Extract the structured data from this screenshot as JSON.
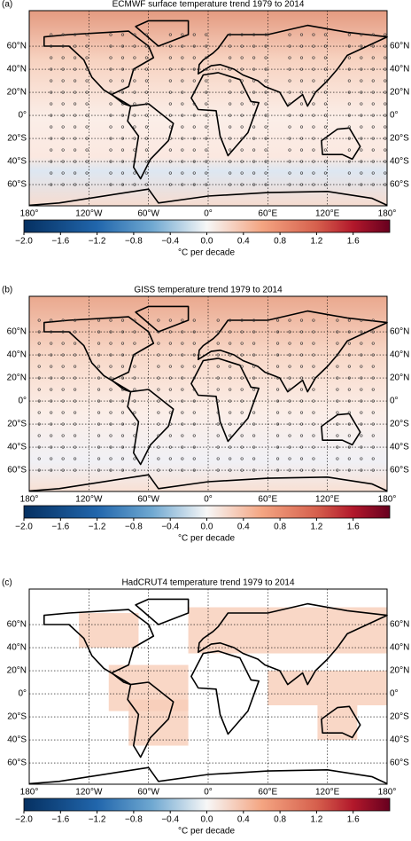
{
  "panels": [
    {
      "label": "(a)",
      "title": "ECMWF surface temperature trend 1979 to 2014"
    },
    {
      "label": "(b)",
      "title": "GISS temperature trend 1979 to 2014"
    },
    {
      "label": "(c)",
      "title": "HadCRUT4 temperature trend 1979 to 2014"
    }
  ],
  "lat_labels": [
    "60°N",
    "40°N",
    "20°N",
    "0°",
    "20°S",
    "40°S",
    "60°S"
  ],
  "lon_labels": [
    "180°",
    "120°W",
    "60°W",
    "0°",
    "60°E",
    "120°E",
    "180°"
  ],
  "colorbar_ticks": [
    "−2.0",
    "−1.6",
    "−1.2",
    "−0.8",
    "−0.4",
    "0.0",
    "0.4",
    "0.8",
    "1.2",
    "1.6"
  ],
  "colorbar_label": "°C per decade"
}
